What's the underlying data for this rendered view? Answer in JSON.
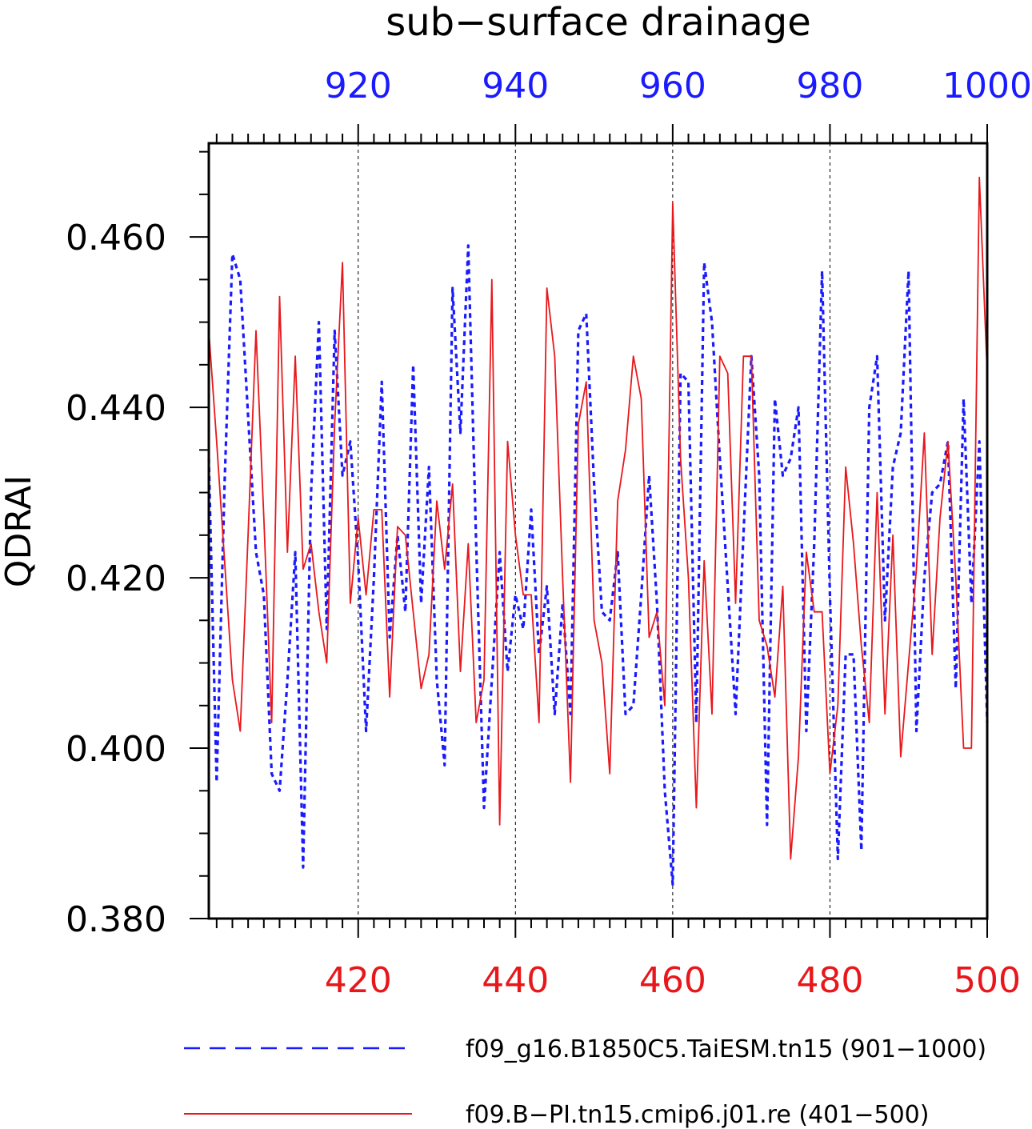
{
  "chart_data": {
    "type": "line",
    "title": "sub−surface drainage",
    "ylabel": "QDRAI",
    "ylim": [
      0.38,
      0.471
    ],
    "yticks": [
      0.38,
      0.4,
      0.42,
      0.44,
      0.46
    ],
    "ytick_labels": [
      "0.380",
      "0.400",
      "0.420",
      "0.440",
      "0.460"
    ],
    "x_bottom": {
      "range": [
        401,
        500
      ],
      "ticks": [
        420,
        440,
        460,
        480,
        500
      ],
      "tick_labels": [
        "420",
        "440",
        "460",
        "480",
        "500"
      ],
      "color": "#e8171b"
    },
    "x_top": {
      "range": [
        901,
        1000
      ],
      "ticks": [
        920,
        940,
        960,
        980,
        1000
      ],
      "tick_labels": [
        "920",
        "940",
        "960",
        "980",
        "1000"
      ],
      "color": "#1a1aff"
    },
    "grid": "vertical dashed at major ticks",
    "legend_position": "bottom",
    "series": [
      {
        "name": "f09_g16.B1850C5.TaiESM.tn15 (901−1000)",
        "axis": "top",
        "style": "dashed",
        "color": "#1a1aff",
        "x": [
          901,
          902,
          903,
          904,
          905,
          906,
          907,
          908,
          909,
          910,
          911,
          912,
          913,
          914,
          915,
          916,
          917,
          918,
          919,
          920,
          921,
          922,
          923,
          924,
          925,
          926,
          927,
          928,
          929,
          930,
          931,
          932,
          933,
          934,
          935,
          936,
          937,
          938,
          939,
          940,
          941,
          942,
          943,
          944,
          945,
          946,
          947,
          948,
          949,
          950,
          951,
          952,
          953,
          954,
          955,
          956,
          957,
          958,
          959,
          960,
          961,
          962,
          963,
          964,
          965,
          966,
          967,
          968,
          969,
          970,
          971,
          972,
          973,
          974,
          975,
          976,
          977,
          978,
          979,
          980,
          981,
          982,
          983,
          984,
          985,
          986,
          987,
          988,
          989,
          990,
          991,
          992,
          993,
          994,
          995,
          996,
          997,
          998,
          999,
          1000
        ],
        "values": [
          0.434,
          0.396,
          0.431,
          0.458,
          0.455,
          0.439,
          0.423,
          0.418,
          0.397,
          0.395,
          0.408,
          0.423,
          0.386,
          0.43,
          0.45,
          0.414,
          0.449,
          0.432,
          0.436,
          0.422,
          0.402,
          0.42,
          0.443,
          0.413,
          0.425,
          0.416,
          0.445,
          0.417,
          0.433,
          0.408,
          0.398,
          0.454,
          0.437,
          0.459,
          0.424,
          0.393,
          0.408,
          0.423,
          0.409,
          0.418,
          0.414,
          0.428,
          0.411,
          0.419,
          0.404,
          0.417,
          0.404,
          0.449,
          0.451,
          0.431,
          0.416,
          0.415,
          0.423,
          0.404,
          0.405,
          0.418,
          0.432,
          0.417,
          0.395,
          0.384,
          0.444,
          0.443,
          0.403,
          0.457,
          0.45,
          0.434,
          0.419,
          0.404,
          0.425,
          0.446,
          0.432,
          0.391,
          0.441,
          0.432,
          0.434,
          0.44,
          0.402,
          0.424,
          0.456,
          0.418,
          0.387,
          0.411,
          0.411,
          0.388,
          0.44,
          0.446,
          0.415,
          0.433,
          0.437,
          0.456,
          0.402,
          0.42,
          0.43,
          0.431,
          0.436,
          0.407,
          0.441,
          0.417,
          0.436,
          0.403
        ]
      },
      {
        "name": "f09.B−PI.tn15.cmip6.j01.re (401−500)",
        "axis": "bottom",
        "style": "solid",
        "color": "#e8171b",
        "x": [
          401,
          402,
          403,
          404,
          405,
          406,
          407,
          408,
          409,
          410,
          411,
          412,
          413,
          414,
          415,
          416,
          417,
          418,
          419,
          420,
          421,
          422,
          423,
          424,
          425,
          426,
          427,
          428,
          429,
          430,
          431,
          432,
          433,
          434,
          435,
          436,
          437,
          438,
          439,
          440,
          441,
          442,
          443,
          444,
          445,
          446,
          447,
          448,
          449,
          450,
          451,
          452,
          453,
          454,
          455,
          456,
          457,
          458,
          459,
          460,
          461,
          462,
          463,
          464,
          465,
          466,
          467,
          468,
          469,
          470,
          471,
          472,
          473,
          474,
          475,
          476,
          477,
          478,
          479,
          480,
          481,
          482,
          483,
          484,
          485,
          486,
          487,
          488,
          489,
          490,
          491,
          492,
          493,
          494,
          495,
          496,
          497,
          498,
          499,
          500
        ],
        "values": [
          0.449,
          0.436,
          0.422,
          0.408,
          0.402,
          0.425,
          0.449,
          0.427,
          0.403,
          0.453,
          0.423,
          0.446,
          0.421,
          0.424,
          0.416,
          0.41,
          0.438,
          0.457,
          0.417,
          0.427,
          0.418,
          0.428,
          0.428,
          0.406,
          0.426,
          0.425,
          0.416,
          0.407,
          0.411,
          0.429,
          0.421,
          0.431,
          0.409,
          0.424,
          0.403,
          0.408,
          0.455,
          0.391,
          0.436,
          0.425,
          0.418,
          0.418,
          0.403,
          0.454,
          0.446,
          0.42,
          0.396,
          0.438,
          0.443,
          0.415,
          0.41,
          0.397,
          0.429,
          0.435,
          0.446,
          0.441,
          0.413,
          0.416,
          0.405,
          0.464,
          0.434,
          0.42,
          0.393,
          0.422,
          0.404,
          0.446,
          0.444,
          0.417,
          0.446,
          0.446,
          0.415,
          0.412,
          0.406,
          0.419,
          0.387,
          0.399,
          0.423,
          0.416,
          0.416,
          0.397,
          0.405,
          0.433,
          0.424,
          0.412,
          0.403,
          0.43,
          0.404,
          0.425,
          0.399,
          0.41,
          0.421,
          0.437,
          0.411,
          0.427,
          0.436,
          0.42,
          0.4,
          0.4,
          0.467,
          0.444
        ]
      }
    ]
  }
}
